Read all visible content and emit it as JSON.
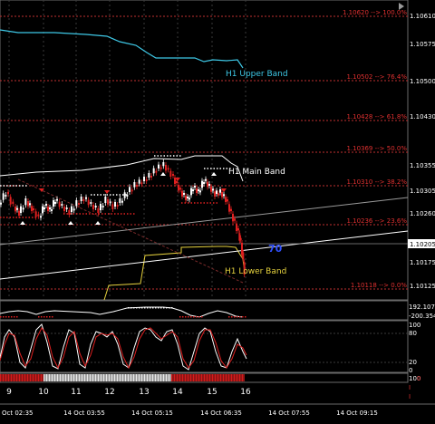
{
  "main_chart": {
    "fib_levels": [
      {
        "text": "1.10620 --> 100.0%"
      },
      {
        "text": "1.10502 --> 76.4%"
      },
      {
        "text": "1.10428 --> 61.8%"
      },
      {
        "text": "1.10369 --> 50.0%"
      },
      {
        "text": "1.10310 --> 38.2%"
      },
      {
        "text": "1.10236 --> 23.6%"
      },
      {
        "text": "1.10118 --> 0.0%"
      }
    ],
    "band_labels": {
      "upper": "H1 Upper Band",
      "main": "H1 Main Band",
      "lower": "H1 Lower Band"
    },
    "marker_number": "70",
    "price_axis": [
      "1.10610",
      "1.10575",
      "1.10500",
      "1.10430",
      "1.10355",
      "1.10305",
      "1.10260",
      "1.10175",
      "1.10125"
    ],
    "current_price": "1.10205"
  },
  "oscillator1": {
    "axis": [
      "192.1078",
      "-200.354"
    ]
  },
  "stochastic": {
    "axis": [
      "100",
      "80",
      "20",
      "0"
    ]
  },
  "strip": {
    "axis": [
      "100",
      "0"
    ]
  },
  "day_axis": [
    "9",
    "10",
    "11",
    "12",
    "13",
    "14",
    "15",
    "16"
  ],
  "time_axis": [
    "Oct 02:35",
    "14 Oct 03:55",
    "14 Oct 05:15",
    "14 Oct 06:35",
    "14 Oct 07:55",
    "14 Oct 09:15"
  ],
  "colors": {
    "background": "#000000",
    "upper_band": "#3ec8e6",
    "main_band": "#ffffff",
    "lower_band": "#e6d23e",
    "fib": "#e03030",
    "candle_bull": "#ffffff",
    "candle_bear": "#e02020",
    "marker": "#3050ff"
  }
}
